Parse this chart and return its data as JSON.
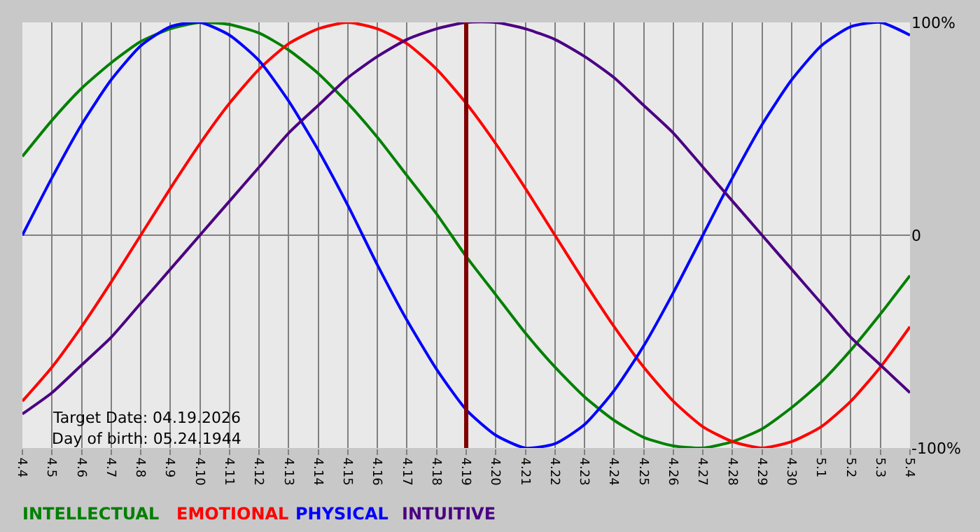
{
  "chart_data": {
    "type": "line",
    "categories": [
      "4.4",
      "4.5",
      "4.6",
      "4.7",
      "4.8",
      "4.9",
      "4.10",
      "4.11",
      "4.12",
      "4.13",
      "4.14",
      "4.15",
      "4.16",
      "4.17",
      "4.18",
      "4.19",
      "4.20",
      "4.21",
      "4.22",
      "4.23",
      "4.24",
      "4.25",
      "4.26",
      "4.27",
      "4.28",
      "4.29",
      "4.30",
      "5.1",
      "5.2",
      "5.3",
      "5.4"
    ],
    "series": [
      {
        "name": "INTELLECTUAL",
        "color": "#008000",
        "values": [
          37,
          54,
          69,
          81,
          91,
          97,
          100,
          99,
          95,
          87,
          76,
          62,
          46,
          28,
          10,
          -10,
          -28,
          -46,
          -62,
          -76,
          -87,
          -95,
          -99,
          -100,
          -97,
          -91,
          -81,
          -69,
          -54,
          -37,
          -19
        ]
      },
      {
        "name": "EMOTIONAL",
        "color": "#ff0000",
        "values": [
          -78,
          -62,
          -43,
          -22,
          0,
          22,
          43,
          62,
          78,
          90,
          97,
          100,
          97,
          90,
          78,
          62,
          43,
          22,
          0,
          -22,
          -43,
          -62,
          -78,
          -90,
          -97,
          -100,
          -97,
          -90,
          -78,
          -62,
          -43
        ]
      },
      {
        "name": "PHYSICAL",
        "color": "#0000ff",
        "values": [
          0,
          27,
          52,
          73,
          89,
          98,
          100,
          94,
          82,
          63,
          40,
          14,
          -14,
          -40,
          -63,
          -82,
          -94,
          -100,
          -98,
          -89,
          -73,
          -52,
          -27,
          0,
          27,
          52,
          73,
          89,
          98,
          100,
          94
        ]
      },
      {
        "name": "INTUITIVE",
        "color": "#4b0082",
        "values": [
          -84,
          -74,
          -61,
          -48,
          -32,
          -16,
          0,
          16,
          32,
          48,
          61,
          74,
          84,
          92,
          97,
          100,
          100,
          97,
          92,
          84,
          74,
          61,
          48,
          32,
          16,
          0,
          -16,
          -32,
          -48,
          -61,
          -74
        ]
      }
    ],
    "ylim": [
      -100,
      100
    ],
    "yticks": [
      {
        "value": 100,
        "label": "100%"
      },
      0,
      {
        "value": -100,
        "label": "-100%"
      }
    ],
    "grid": true,
    "legend": false,
    "marker": "none",
    "line_style": "solid",
    "ref_lines": [
      {
        "axis": "x",
        "value": "4.19",
        "color": "#800000"
      }
    ],
    "annotations": [
      "Target Date: 04.19.2026",
      "Day of birth: 05.24.1944"
    ]
  }
}
